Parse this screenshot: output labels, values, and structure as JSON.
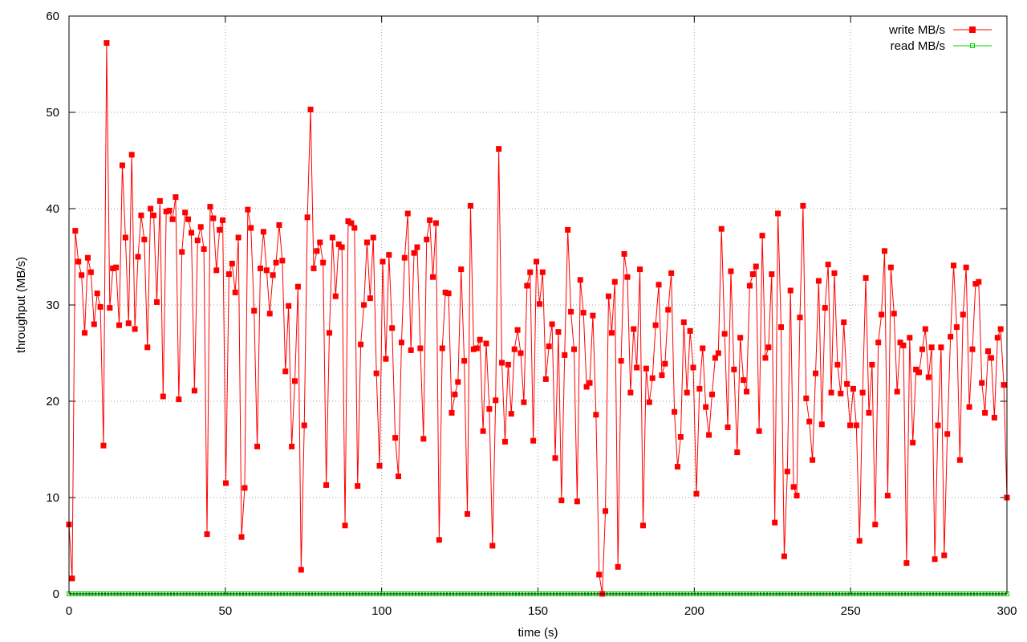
{
  "chart_data": {
    "type": "line",
    "xlabel": "time (s)",
    "ylabel": "throughput (MB/s)",
    "xlim": [
      0,
      300
    ],
    "ylim": [
      0,
      60
    ],
    "x_ticks": [
      0,
      50,
      100,
      150,
      200,
      250,
      300
    ],
    "y_ticks": [
      0,
      10,
      20,
      30,
      40,
      50,
      60
    ],
    "grid": true,
    "legend_position": "top-right",
    "series": [
      {
        "name": "write MB/s",
        "color": "#ff0000",
        "marker": "filled-square",
        "values": [
          7.2,
          1.6,
          37.7,
          34.5,
          33.1,
          27.1,
          34.9,
          33.4,
          28.0,
          31.2,
          29.8,
          15.4,
          57.2,
          29.7,
          33.8,
          33.9,
          27.9,
          44.5,
          37.0,
          28.1,
          45.6,
          27.5,
          35.0,
          39.3,
          36.8,
          25.6,
          40.0,
          39.3,
          30.3,
          40.8,
          20.5,
          39.7,
          39.8,
          38.9,
          41.2,
          20.2,
          35.5,
          39.6,
          38.9,
          37.5,
          21.1,
          36.7,
          38.1,
          35.8,
          6.2,
          40.2,
          39.0,
          33.6,
          37.8,
          38.8,
          11.5,
          33.2,
          34.3,
          31.3,
          37.0,
          5.9,
          11.0,
          39.9,
          38.0,
          29.4,
          15.3,
          33.8,
          37.6,
          33.6,
          29.1,
          33.1,
          34.4,
          38.3,
          34.6,
          23.1,
          29.9,
          15.3,
          22.1,
          31.9,
          2.5,
          17.5,
          39.1,
          50.3,
          33.8,
          35.6,
          36.5,
          34.4,
          11.3,
          27.1,
          37.0,
          30.9,
          36.3,
          36.0,
          7.1,
          38.7,
          38.5,
          38.0,
          11.2,
          25.9,
          30.0,
          36.5,
          30.7,
          37.0,
          22.9,
          13.3,
          34.5,
          24.4,
          35.2,
          27.6,
          16.2,
          12.2,
          26.1,
          34.9,
          39.5,
          25.3,
          35.4,
          36.0,
          25.5,
          16.1,
          36.8,
          38.8,
          32.9,
          38.5,
          5.6,
          25.5,
          31.3,
          31.2,
          18.8,
          20.7,
          22.0,
          33.7,
          24.2,
          8.3,
          40.3,
          25.4,
          25.5,
          26.4,
          16.9,
          26.0,
          19.2,
          5.0,
          20.1,
          46.2,
          24.0,
          15.8,
          23.8,
          18.7,
          25.4,
          27.4,
          25.0,
          19.9,
          32.0,
          33.4,
          15.9,
          34.5,
          30.1,
          33.4,
          22.3,
          25.7,
          28.0,
          14.1,
          27.2,
          9.7,
          24.8,
          37.8,
          29.3,
          25.4,
          9.6,
          32.6,
          29.2,
          21.5,
          21.9,
          28.9,
          18.6,
          2.0,
          0,
          8.6,
          30.9,
          27.1,
          32.4,
          2.8,
          24.2,
          35.3,
          32.9,
          20.9,
          27.5,
          23.5,
          33.7,
          7.1,
          23.4,
          19.9,
          22.4,
          27.9,
          32.1,
          22.7,
          23.9,
          29.5,
          33.3,
          18.9,
          13.2,
          16.3,
          28.2,
          20.9,
          27.3,
          23.5,
          10.4,
          21.3,
          25.5,
          19.4,
          16.5,
          20.7,
          24.5,
          25.0,
          37.9,
          27.0,
          17.3,
          33.5,
          23.3,
          14.7,
          26.6,
          22.2,
          21.0,
          32.0,
          33.2,
          34.0,
          16.9,
          37.2,
          24.5,
          25.6,
          33.2,
          7.4,
          39.5,
          27.7,
          3.9,
          12.7,
          31.5,
          11.1,
          10.2,
          28.7,
          40.3,
          20.3,
          17.9,
          13.9,
          22.9,
          32.5,
          17.6,
          29.7,
          34.2,
          20.9,
          33.3,
          23.8,
          20.8,
          28.2,
          21.8,
          17.5,
          21.3,
          17.5,
          5.5,
          20.9,
          32.8,
          18.8,
          23.8,
          7.2,
          26.1,
          29.0,
          35.6,
          10.2,
          33.9,
          29.1,
          21.0,
          26.1,
          25.8,
          3.2,
          26.6,
          15.7,
          23.3,
          23.0,
          25.4,
          27.5,
          22.5,
          25.6,
          3.6,
          17.5,
          25.6,
          4.0,
          16.6,
          26.7,
          34.1,
          27.7,
          13.9,
          29.0,
          33.9,
          19.4,
          25.4,
          32.2,
          32.4,
          21.9,
          18.8,
          25.2,
          24.5,
          18.3,
          26.6,
          27.5,
          21.7,
          10.0
        ]
      },
      {
        "name": "read MB/s",
        "color": "#00cc00",
        "marker": "open-square",
        "values_constant": 0
      }
    ]
  }
}
